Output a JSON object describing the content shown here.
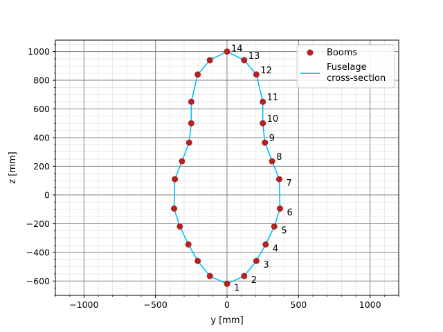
{
  "chart_data": {
    "type": "scatter",
    "title": "",
    "xlabel": "y [mm]",
    "ylabel": "z [mm]",
    "xlim": [
      -1200,
      1200
    ],
    "ylim": [
      -700,
      1080
    ],
    "x_ticks": [
      -1000,
      -500,
      0,
      500,
      1000
    ],
    "x_tick_labels": [
      "−1000",
      "−500",
      "0",
      "500",
      "1000"
    ],
    "y_ticks": [
      -600,
      -400,
      -200,
      0,
      200,
      400,
      600,
      800,
      1000
    ],
    "y_tick_labels": [
      "−600",
      "−400",
      "−200",
      "0",
      "200",
      "400",
      "600",
      "800",
      "1000"
    ],
    "grid": true,
    "minor_grid": true,
    "legend_position": "top-right",
    "colors": {
      "booms": "#b22222",
      "fuselage": "#00bfff",
      "major_grid": "#808080",
      "minor_grid": "#dddddd"
    },
    "series": [
      {
        "name": "Booms",
        "kind": "scatter",
        "points": [
          {
            "label": "1",
            "y": 0,
            "z": -620
          },
          {
            "label": "2",
            "y": 120,
            "z": -565
          },
          {
            "label": "3",
            "y": 205,
            "z": -460
          },
          {
            "label": "4",
            "y": 270,
            "z": -345
          },
          {
            "label": "5",
            "y": 330,
            "z": -220
          },
          {
            "label": "6",
            "y": 370,
            "z": -95
          },
          {
            "label": "7",
            "y": 365,
            "z": 110
          },
          {
            "label": "8",
            "y": 315,
            "z": 235
          },
          {
            "label": "9",
            "y": 265,
            "z": 365
          },
          {
            "label": "10",
            "y": 250,
            "z": 500
          },
          {
            "label": "11",
            "y": 250,
            "z": 650
          },
          {
            "label": "12",
            "y": 205,
            "z": 840
          },
          {
            "label": "13",
            "y": 120,
            "z": 940
          },
          {
            "label": "14",
            "y": 0,
            "z": 1000
          },
          {
            "label": "",
            "y": -120,
            "z": 940
          },
          {
            "label": "",
            "y": -205,
            "z": 840
          },
          {
            "label": "",
            "y": -250,
            "z": 650
          },
          {
            "label": "",
            "y": -250,
            "z": 500
          },
          {
            "label": "",
            "y": -265,
            "z": 365
          },
          {
            "label": "",
            "y": -315,
            "z": 235
          },
          {
            "label": "",
            "y": -365,
            "z": 110
          },
          {
            "label": "",
            "y": -370,
            "z": -95
          },
          {
            "label": "",
            "y": -330,
            "z": -220
          },
          {
            "label": "",
            "y": -270,
            "z": -345
          },
          {
            "label": "",
            "y": -205,
            "z": -460
          },
          {
            "label": "",
            "y": -120,
            "z": -565
          }
        ]
      },
      {
        "name": "Fuselage\ncross-section",
        "kind": "line",
        "closed": true,
        "uses_points_of": "Booms"
      }
    ]
  }
}
